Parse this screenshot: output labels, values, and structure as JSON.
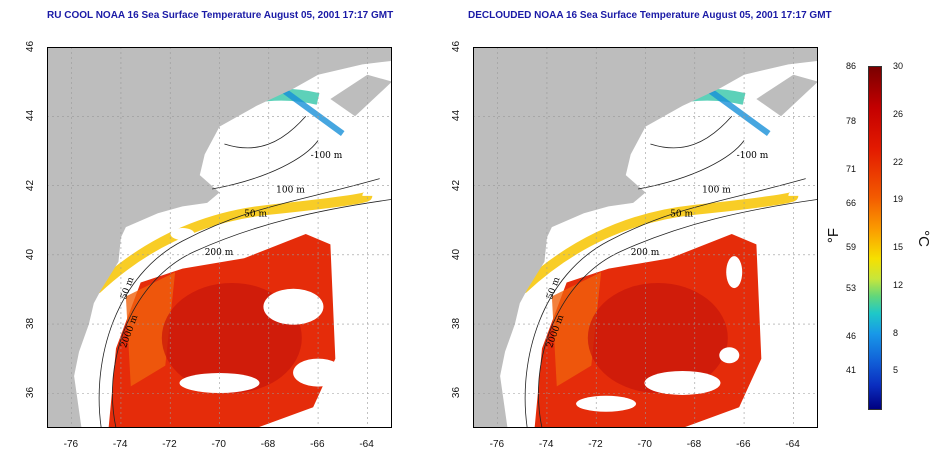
{
  "titles": {
    "left": "RU COOL NOAA 16 Sea Surface Temperature August 05, 2001 17:17 GMT",
    "right": "DECLOUDED NOAA 16 Sea Surface Temperature August 05, 2001 17:17 GMT"
  },
  "axes": {
    "x_ticks": [
      "-76",
      "-74",
      "-72",
      "-70",
      "-68",
      "-66",
      "-64"
    ],
    "y_ticks": [
      "36",
      "38",
      "40",
      "42",
      "44",
      "46"
    ]
  },
  "contour_labels": [
    "-100 m",
    "100 m",
    "50 m",
    "200 m",
    "50 m",
    "2000 m"
  ],
  "colorbar": {
    "fahrenheit_unit": "°F",
    "celsius_unit": "°C",
    "fahrenheit_ticks": [
      "86",
      "78",
      "71",
      "66",
      "59",
      "53",
      "46",
      "41"
    ],
    "celsius_ticks": [
      "30",
      "26",
      "22",
      "19",
      "15",
      "12",
      "8",
      "5"
    ]
  }
}
